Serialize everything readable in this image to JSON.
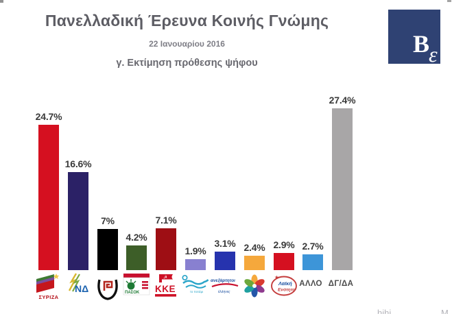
{
  "header": {
    "title": "Πανελλαδική Έρευνα Κοινής Γνώμης",
    "date": "22 Ιανουαρίου 2016",
    "subtitle": "γ. Εκτίμηση πρόθεσης ψήφου"
  },
  "logo": {
    "main_letter": "B",
    "sub_letter": "ε",
    "bg_color": "#2F4273"
  },
  "chart_data": {
    "type": "bar",
    "title": "γ. Εκτίμηση πρόθεσης ψήφου",
    "unit": "percent",
    "ylim": [
      0,
      30
    ],
    "grid": false,
    "legend": false,
    "x_labels_as": "party logos (first 9) and text (last 2)",
    "categories": [
      "ΣΥΡΙΖΑ",
      "ΝΔ",
      "Χρυσή Αυγή",
      "ΠΑΣΟΚ",
      "ΚΚΕ",
      "Το Ποτάμι",
      "ΑΝΕΞΑΡΤΗΤΟΙ ΕΛΛΗΝΕΣ",
      "Ένωση Κεντρώων",
      "Λαϊκή Ενότητα",
      "ΑΛΛΟ",
      "ΔΓ/ΔΑ"
    ],
    "values": [
      24.7,
      16.6,
      7,
      4.2,
      7.1,
      1.9,
      3.1,
      2.4,
      2.9,
      2.7,
      27.4
    ],
    "labels": [
      "24.7%",
      "16.6%",
      "7%",
      "4.2%",
      "7.1%",
      "1.9%",
      "3.1%",
      "2.4%",
      "2.9%",
      "2.7%",
      "27.4%"
    ],
    "colors": [
      "#D51020",
      "#2B2166",
      "#000000",
      "#3D5E28",
      "#9E0E14",
      "#8880D0",
      "#2633AE",
      "#F5A83C",
      "#D51020",
      "#3D95D8",
      "#A8A6A7"
    ]
  },
  "party_logos": {
    "syriza": "ΣΥΡΙΖΑ",
    "nd": "ΝΔ",
    "pasok": "ΠΑΣΟΚ",
    "kke": "ΚΚΕ",
    "potami": "το ποτάμι",
    "anel_line1": "ανεξάρτητοι",
    "anel_line2": "έλληνες",
    "laiki_line1": "Λαϊκή",
    "laiki_line2": "Ενότητα"
  },
  "footer": {
    "mark_left": "hihi",
    "mark_right": "M"
  }
}
